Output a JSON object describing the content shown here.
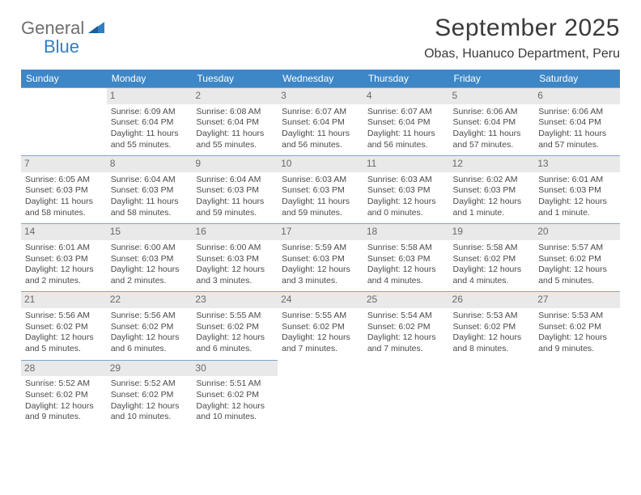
{
  "brand": {
    "word1": "General",
    "word2": "Blue",
    "color_gray": "#6f6f6f",
    "color_blue": "#2f7fc2"
  },
  "title": "September 2025",
  "location": "Obas, Huanuco Department, Peru",
  "header_bg": "#3d87c7",
  "row_border": "#7aa8cf",
  "daynum_bg": "#e9e9e9",
  "text_color": "#4a4a4a",
  "weekdays": [
    "Sunday",
    "Monday",
    "Tuesday",
    "Wednesday",
    "Thursday",
    "Friday",
    "Saturday"
  ],
  "weeks": [
    [
      null,
      {
        "n": "1",
        "sr": "Sunrise: 6:09 AM",
        "ss": "Sunset: 6:04 PM",
        "dl": "Daylight: 11 hours and 55 minutes."
      },
      {
        "n": "2",
        "sr": "Sunrise: 6:08 AM",
        "ss": "Sunset: 6:04 PM",
        "dl": "Daylight: 11 hours and 55 minutes."
      },
      {
        "n": "3",
        "sr": "Sunrise: 6:07 AM",
        "ss": "Sunset: 6:04 PM",
        "dl": "Daylight: 11 hours and 56 minutes."
      },
      {
        "n": "4",
        "sr": "Sunrise: 6:07 AM",
        "ss": "Sunset: 6:04 PM",
        "dl": "Daylight: 11 hours and 56 minutes."
      },
      {
        "n": "5",
        "sr": "Sunrise: 6:06 AM",
        "ss": "Sunset: 6:04 PM",
        "dl": "Daylight: 11 hours and 57 minutes."
      },
      {
        "n": "6",
        "sr": "Sunrise: 6:06 AM",
        "ss": "Sunset: 6:04 PM",
        "dl": "Daylight: 11 hours and 57 minutes."
      }
    ],
    [
      {
        "n": "7",
        "sr": "Sunrise: 6:05 AM",
        "ss": "Sunset: 6:03 PM",
        "dl": "Daylight: 11 hours and 58 minutes."
      },
      {
        "n": "8",
        "sr": "Sunrise: 6:04 AM",
        "ss": "Sunset: 6:03 PM",
        "dl": "Daylight: 11 hours and 58 minutes."
      },
      {
        "n": "9",
        "sr": "Sunrise: 6:04 AM",
        "ss": "Sunset: 6:03 PM",
        "dl": "Daylight: 11 hours and 59 minutes."
      },
      {
        "n": "10",
        "sr": "Sunrise: 6:03 AM",
        "ss": "Sunset: 6:03 PM",
        "dl": "Daylight: 11 hours and 59 minutes."
      },
      {
        "n": "11",
        "sr": "Sunrise: 6:03 AM",
        "ss": "Sunset: 6:03 PM",
        "dl": "Daylight: 12 hours and 0 minutes."
      },
      {
        "n": "12",
        "sr": "Sunrise: 6:02 AM",
        "ss": "Sunset: 6:03 PM",
        "dl": "Daylight: 12 hours and 1 minute."
      },
      {
        "n": "13",
        "sr": "Sunrise: 6:01 AM",
        "ss": "Sunset: 6:03 PM",
        "dl": "Daylight: 12 hours and 1 minute."
      }
    ],
    [
      {
        "n": "14",
        "sr": "Sunrise: 6:01 AM",
        "ss": "Sunset: 6:03 PM",
        "dl": "Daylight: 12 hours and 2 minutes."
      },
      {
        "n": "15",
        "sr": "Sunrise: 6:00 AM",
        "ss": "Sunset: 6:03 PM",
        "dl": "Daylight: 12 hours and 2 minutes."
      },
      {
        "n": "16",
        "sr": "Sunrise: 6:00 AM",
        "ss": "Sunset: 6:03 PM",
        "dl": "Daylight: 12 hours and 3 minutes."
      },
      {
        "n": "17",
        "sr": "Sunrise: 5:59 AM",
        "ss": "Sunset: 6:03 PM",
        "dl": "Daylight: 12 hours and 3 minutes."
      },
      {
        "n": "18",
        "sr": "Sunrise: 5:58 AM",
        "ss": "Sunset: 6:03 PM",
        "dl": "Daylight: 12 hours and 4 minutes."
      },
      {
        "n": "19",
        "sr": "Sunrise: 5:58 AM",
        "ss": "Sunset: 6:02 PM",
        "dl": "Daylight: 12 hours and 4 minutes."
      },
      {
        "n": "20",
        "sr": "Sunrise: 5:57 AM",
        "ss": "Sunset: 6:02 PM",
        "dl": "Daylight: 12 hours and 5 minutes."
      }
    ],
    [
      {
        "n": "21",
        "sr": "Sunrise: 5:56 AM",
        "ss": "Sunset: 6:02 PM",
        "dl": "Daylight: 12 hours and 5 minutes."
      },
      {
        "n": "22",
        "sr": "Sunrise: 5:56 AM",
        "ss": "Sunset: 6:02 PM",
        "dl": "Daylight: 12 hours and 6 minutes."
      },
      {
        "n": "23",
        "sr": "Sunrise: 5:55 AM",
        "ss": "Sunset: 6:02 PM",
        "dl": "Daylight: 12 hours and 6 minutes."
      },
      {
        "n": "24",
        "sr": "Sunrise: 5:55 AM",
        "ss": "Sunset: 6:02 PM",
        "dl": "Daylight: 12 hours and 7 minutes."
      },
      {
        "n": "25",
        "sr": "Sunrise: 5:54 AM",
        "ss": "Sunset: 6:02 PM",
        "dl": "Daylight: 12 hours and 7 minutes."
      },
      {
        "n": "26",
        "sr": "Sunrise: 5:53 AM",
        "ss": "Sunset: 6:02 PM",
        "dl": "Daylight: 12 hours and 8 minutes."
      },
      {
        "n": "27",
        "sr": "Sunrise: 5:53 AM",
        "ss": "Sunset: 6:02 PM",
        "dl": "Daylight: 12 hours and 9 minutes."
      }
    ],
    [
      {
        "n": "28",
        "sr": "Sunrise: 5:52 AM",
        "ss": "Sunset: 6:02 PM",
        "dl": "Daylight: 12 hours and 9 minutes."
      },
      {
        "n": "29",
        "sr": "Sunrise: 5:52 AM",
        "ss": "Sunset: 6:02 PM",
        "dl": "Daylight: 12 hours and 10 minutes."
      },
      {
        "n": "30",
        "sr": "Sunrise: 5:51 AM",
        "ss": "Sunset: 6:02 PM",
        "dl": "Daylight: 12 hours and 10 minutes."
      },
      null,
      null,
      null,
      null
    ]
  ]
}
